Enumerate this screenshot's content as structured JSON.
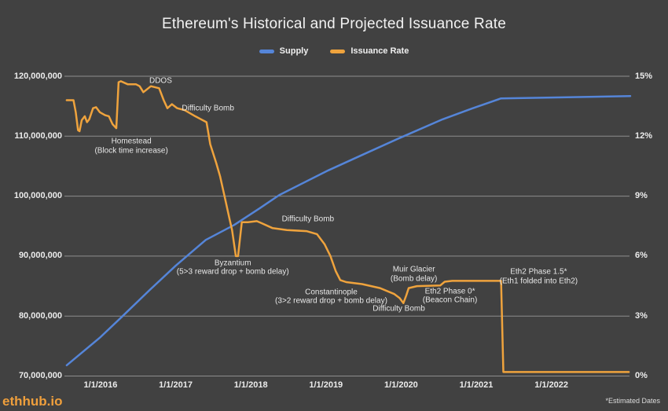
{
  "title": "Ethereum's Historical and Projected Issuance Rate",
  "legend": {
    "items": [
      {
        "label": "Supply",
        "color": "#5585d8"
      },
      {
        "label": "Issuance Rate",
        "color": "#efa33d"
      }
    ]
  },
  "watermark": "ethhub.io",
  "footnote": "*Estimated Dates",
  "colors": {
    "background": "#414141",
    "grid": "#8e8e8e",
    "text": "#ececec",
    "supply": "#5585d8",
    "issuance": "#efa33d"
  },
  "chart_data": {
    "type": "line",
    "title": "Ethereum's Historical and Projected Issuance Rate",
    "grid": "horizontal",
    "legend_position": "top",
    "x_range": [
      2015.53,
      2023.06
    ],
    "x_ticks": [
      {
        "year": 2016,
        "label": "1/1/2016"
      },
      {
        "year": 2017,
        "label": "1/1/2017"
      },
      {
        "year": 2018,
        "label": "1/1/2018"
      },
      {
        "year": 2019,
        "label": "1/1/2019"
      },
      {
        "year": 2020,
        "label": "1/1/2020"
      },
      {
        "year": 2021,
        "label": "1/1/2021"
      },
      {
        "year": 2022,
        "label": "1/1/2022"
      }
    ],
    "y_left": {
      "range": [
        70000000,
        120000000
      ],
      "ticks": [
        {
          "value": 70000000,
          "label": "70,000,000"
        },
        {
          "value": 80000000,
          "label": "80,000,000"
        },
        {
          "value": 90000000,
          "label": "90,000,000"
        },
        {
          "value": 100000000,
          "label": "100,000,000"
        },
        {
          "value": 110000000,
          "label": "110,000,000"
        },
        {
          "value": 120000000,
          "label": "120,000,000"
        }
      ]
    },
    "y_right": {
      "range": [
        0,
        15
      ],
      "ticks": [
        {
          "value": 0,
          "label": "0%"
        },
        {
          "value": 3,
          "label": "3%"
        },
        {
          "value": 6,
          "label": "6%"
        },
        {
          "value": 9,
          "label": "9%"
        },
        {
          "value": 12,
          "label": "12%"
        },
        {
          "value": 15,
          "label": "15%"
        }
      ]
    },
    "series": [
      {
        "name": "Supply",
        "axis": "left",
        "color": "#5585d8",
        "points": [
          [
            2015.55,
            71800000
          ],
          [
            2016.0,
            76500000
          ],
          [
            2016.26,
            79600000
          ],
          [
            2016.65,
            84300000
          ],
          [
            2017.0,
            88400000
          ],
          [
            2017.4,
            92700000
          ],
          [
            2017.78,
            95200000
          ],
          [
            2018.12,
            98000000
          ],
          [
            2018.38,
            100200000
          ],
          [
            2019.03,
            104300000
          ],
          [
            2019.47,
            106800000
          ],
          [
            2020.0,
            109800000
          ],
          [
            2020.55,
            112800000
          ],
          [
            2020.94,
            114600000
          ],
          [
            2021.33,
            116300000
          ],
          [
            2022.0,
            116450000
          ],
          [
            2023.05,
            116700000
          ]
        ]
      },
      {
        "name": "Issuance Rate",
        "axis": "right",
        "color": "#efa33d",
        "points": [
          [
            2015.55,
            13.8
          ],
          [
            2015.64,
            13.8
          ],
          [
            2015.67,
            13.2
          ],
          [
            2015.7,
            12.3
          ],
          [
            2015.72,
            12.25
          ],
          [
            2015.75,
            12.8
          ],
          [
            2015.79,
            13.0
          ],
          [
            2015.82,
            12.7
          ],
          [
            2015.85,
            12.85
          ],
          [
            2015.9,
            13.4
          ],
          [
            2015.94,
            13.45
          ],
          [
            2015.99,
            13.2
          ],
          [
            2016.06,
            13.05
          ],
          [
            2016.11,
            13.0
          ],
          [
            2016.16,
            12.6
          ],
          [
            2016.21,
            12.4
          ],
          [
            2016.24,
            14.7
          ],
          [
            2016.27,
            14.75
          ],
          [
            2016.36,
            14.6
          ],
          [
            2016.47,
            14.6
          ],
          [
            2016.52,
            14.5
          ],
          [
            2016.57,
            14.2
          ],
          [
            2016.67,
            14.5
          ],
          [
            2016.78,
            14.4
          ],
          [
            2016.84,
            13.8
          ],
          [
            2016.89,
            13.4
          ],
          [
            2016.95,
            13.6
          ],
          [
            2017.02,
            13.4
          ],
          [
            2017.12,
            13.3
          ],
          [
            2017.26,
            13.0
          ],
          [
            2017.41,
            12.7
          ],
          [
            2017.46,
            11.6
          ],
          [
            2017.54,
            10.65
          ],
          [
            2017.59,
            10.0
          ],
          [
            2017.65,
            9.0
          ],
          [
            2017.72,
            7.8
          ],
          [
            2017.75,
            7.3
          ],
          [
            2017.8,
            6.0
          ],
          [
            2017.83,
            6.0
          ],
          [
            2017.88,
            7.7
          ],
          [
            2017.96,
            7.7
          ],
          [
            2018.08,
            7.75
          ],
          [
            2018.14,
            7.65
          ],
          [
            2018.29,
            7.4
          ],
          [
            2018.48,
            7.3
          ],
          [
            2018.74,
            7.25
          ],
          [
            2018.88,
            7.1
          ],
          [
            2018.98,
            6.6
          ],
          [
            2019.06,
            6.0
          ],
          [
            2019.13,
            5.25
          ],
          [
            2019.19,
            4.8
          ],
          [
            2019.27,
            4.7
          ],
          [
            2019.48,
            4.6
          ],
          [
            2019.72,
            4.4
          ],
          [
            2019.91,
            4.1
          ],
          [
            2019.98,
            3.9
          ],
          [
            2020.03,
            3.65
          ],
          [
            2020.07,
            4.05
          ],
          [
            2020.1,
            4.4
          ],
          [
            2020.21,
            4.5
          ],
          [
            2020.52,
            4.53
          ],
          [
            2020.58,
            4.72
          ],
          [
            2020.68,
            4.76
          ],
          [
            2021.33,
            4.76
          ],
          [
            2021.36,
            0.2
          ],
          [
            2023.03,
            0.2
          ]
        ]
      }
    ],
    "annotations": [
      {
        "lines": [
          "DDOS"
        ],
        "year": 2016.8,
        "pct": 14.76
      },
      {
        "lines": [
          "Homestead",
          "(Block time increase)"
        ],
        "year": 2016.41,
        "pct": 11.5
      },
      {
        "lines": [
          "Difficulty Bomb"
        ],
        "year": 2017.43,
        "pct": 13.39
      },
      {
        "lines": [
          "Byzantium",
          "(5>3 reward drop + bomb delay)"
        ],
        "year": 2017.76,
        "pct": 5.41
      },
      {
        "lines": [
          "Difficulty Bomb"
        ],
        "year": 2018.76,
        "pct": 7.84
      },
      {
        "lines": [
          "Constantinople",
          "(3>2 reward drop + bomb delay)"
        ],
        "year": 2019.07,
        "pct": 3.97
      },
      {
        "lines": [
          "Difficulty Bomb"
        ],
        "year": 2019.97,
        "pct": 3.38
      },
      {
        "lines": [
          "Muir Glacier",
          "(Bomb delay)"
        ],
        "year": 2020.17,
        "pct": 5.09
      },
      {
        "lines": [
          "Eth2 Phase 0*",
          "(Beacon Chain)"
        ],
        "year": 2020.65,
        "pct": 4.01
      },
      {
        "lines": [
          "Eth2 Phase 1.5*",
          "(Eth1 folded into Eth2)"
        ],
        "year": 2021.83,
        "pct": 4.97
      }
    ]
  }
}
